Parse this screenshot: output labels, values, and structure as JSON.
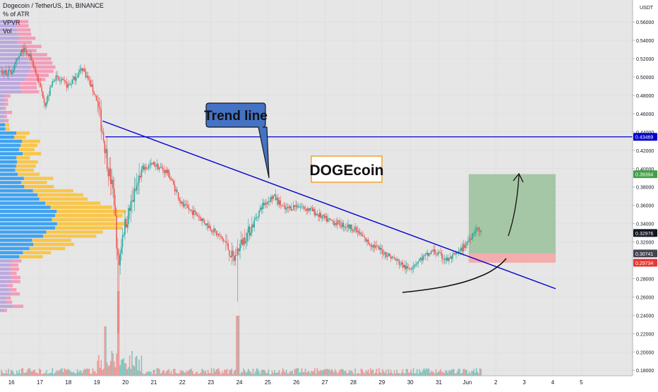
{
  "header": {
    "symbol_line": "Dogecoin / TetherUS, 1h, BINANCE",
    "indicators": [
      "% of ATR",
      "VPVR",
      "Vol"
    ]
  },
  "annotations": {
    "trend_line_label": "Trend line",
    "coin_label": "DOGEcoin"
  },
  "colors": {
    "background": "#e6e6e6",
    "candle_up": "#26a69a",
    "candle_down": "#ef5350",
    "trend_line": "#0000cd",
    "callout_fill": "#4472c4",
    "coin_box_border": "#f0a030",
    "target_zone": "#8fbc8f",
    "stop_zone": "#f4a6a6",
    "vpvr_blue": "#2196f3",
    "vpvr_yellow": "#fbc02d",
    "vpvr_pink": "#f48fb1",
    "vpvr_lilac": "#b39ddb"
  },
  "chart_data": {
    "type": "candlestick",
    "title": "Dogecoin / TetherUS, 1h, BINANCE",
    "y_unit": "USDT",
    "ylim": [
      0.174,
      0.584
    ],
    "y_ticks": [
      "0.56000",
      "0.54000",
      "0.52000",
      "0.50000",
      "0.48000",
      "0.46000",
      "0.44000",
      "0.42000",
      "0.40000",
      "0.38000",
      "0.36000",
      "0.34000",
      "0.32000",
      "0.30000",
      "0.28000",
      "0.26000",
      "0.24000",
      "0.22000",
      "0.20000",
      "0.18000"
    ],
    "y_tick_values": [
      0.56,
      0.54,
      0.52,
      0.5,
      0.48,
      0.46,
      0.44,
      0.42,
      0.4,
      0.38,
      0.36,
      0.34,
      0.32,
      0.3,
      0.28,
      0.26,
      0.24,
      0.22,
      0.2,
      0.18
    ],
    "x_ticks": [
      "16",
      "17",
      "18",
      "19",
      "20",
      "21",
      "22",
      "23",
      "24",
      "25",
      "26",
      "27",
      "28",
      "29",
      "30",
      "31",
      "Jun",
      "2",
      "3",
      "4",
      "5"
    ],
    "x_tick_days": [
      0,
      1,
      2,
      3,
      4,
      5,
      6,
      7,
      8,
      9,
      10,
      11,
      12,
      13,
      14,
      15,
      16,
      17,
      18,
      19,
      20
    ],
    "xlim": [
      -0.4,
      21.8
    ],
    "price_key_points": [
      {
        "x": 0.0,
        "y": 0.505
      },
      {
        "x": 0.4,
        "y": 0.53
      },
      {
        "x": 0.7,
        "y": 0.52
      },
      {
        "x": 1.0,
        "y": 0.49
      },
      {
        "x": 1.2,
        "y": 0.47
      },
      {
        "x": 1.5,
        "y": 0.5
      },
      {
        "x": 2.0,
        "y": 0.49
      },
      {
        "x": 2.5,
        "y": 0.51
      },
      {
        "x": 2.8,
        "y": 0.49
      },
      {
        "x": 3.0,
        "y": 0.475
      },
      {
        "x": 3.2,
        "y": 0.44
      },
      {
        "x": 3.4,
        "y": 0.4
      },
      {
        "x": 3.6,
        "y": 0.37
      },
      {
        "x": 3.75,
        "y": 0.29
      },
      {
        "x": 3.9,
        "y": 0.33
      },
      {
        "x": 4.1,
        "y": 0.35
      },
      {
        "x": 4.3,
        "y": 0.37
      },
      {
        "x": 4.6,
        "y": 0.4
      },
      {
        "x": 5.0,
        "y": 0.405
      },
      {
        "x": 5.5,
        "y": 0.395
      },
      {
        "x": 6.0,
        "y": 0.36
      },
      {
        "x": 6.5,
        "y": 0.35
      },
      {
        "x": 7.0,
        "y": 0.335
      },
      {
        "x": 7.5,
        "y": 0.32
      },
      {
        "x": 7.8,
        "y": 0.3
      },
      {
        "x": 8.0,
        "y": 0.315
      },
      {
        "x": 8.4,
        "y": 0.335
      },
      {
        "x": 8.8,
        "y": 0.36
      },
      {
        "x": 9.2,
        "y": 0.37
      },
      {
        "x": 9.6,
        "y": 0.355
      },
      {
        "x": 10.0,
        "y": 0.36
      },
      {
        "x": 10.5,
        "y": 0.355
      },
      {
        "x": 11.0,
        "y": 0.345
      },
      {
        "x": 11.5,
        "y": 0.34
      },
      {
        "x": 12.0,
        "y": 0.335
      },
      {
        "x": 12.5,
        "y": 0.32
      },
      {
        "x": 13.0,
        "y": 0.31
      },
      {
        "x": 13.5,
        "y": 0.3
      },
      {
        "x": 13.9,
        "y": 0.29
      },
      {
        "x": 14.3,
        "y": 0.3
      },
      {
        "x": 14.8,
        "y": 0.31
      },
      {
        "x": 15.3,
        "y": 0.3
      },
      {
        "x": 15.7,
        "y": 0.308
      },
      {
        "x": 16.0,
        "y": 0.32
      },
      {
        "x": 16.3,
        "y": 0.335
      },
      {
        "x": 16.5,
        "y": 0.33
      }
    ],
    "horizontal_line": {
      "price": 0.43469,
      "label": "0.43469",
      "from_day": 3.3
    },
    "trend_line": {
      "x1": 3.2,
      "y1": 0.452,
      "x2": 19.1,
      "y2": 0.269
    },
    "target_zone": {
      "x1": 16.05,
      "x2": 19.1,
      "top": 0.39394,
      "bottom": 0.30741
    },
    "stop_zone": {
      "x1": 16.05,
      "x2": 19.1,
      "top": 0.30741,
      "bottom": 0.29734
    },
    "price_labels": [
      {
        "price": 0.43469,
        "label": "0.43469",
        "color": "#0000cd"
      },
      {
        "price": 0.39394,
        "label": "0.39394",
        "color": "#43a047"
      },
      {
        "price": 0.32976,
        "label": "0.32976",
        "color": "#131722"
      },
      {
        "price": 0.30741,
        "label": "0.30741",
        "color": "#434651"
      },
      {
        "price": 0.29734,
        "label": "0.29734",
        "color": "#e53935"
      }
    ]
  }
}
